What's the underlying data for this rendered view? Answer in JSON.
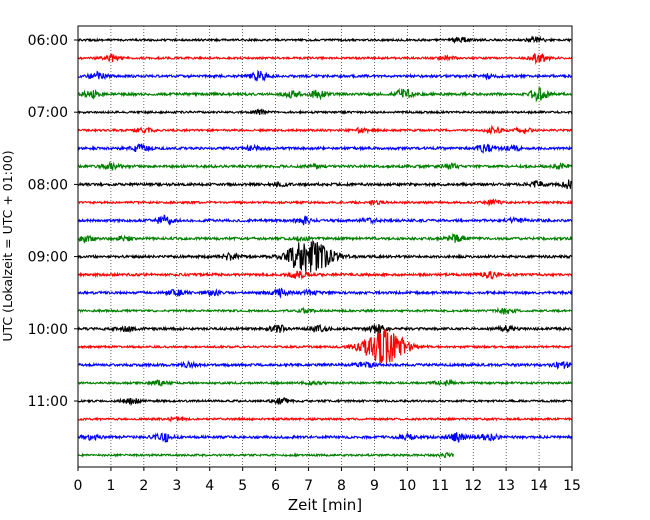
{
  "chart_data": {
    "type": "line",
    "title": "",
    "xlabel": "Zeit  [min]",
    "ylabel": "UTC (Lokalzeit = UTC + 01:00)",
    "xlim": [
      0,
      15
    ],
    "x_ticks": [
      "0",
      "1",
      "2",
      "3",
      "4",
      "5",
      "6",
      "7",
      "8",
      "9",
      "10",
      "11",
      "12",
      "13",
      "14",
      "15"
    ],
    "y_ticks": [
      "06:00",
      "07:00",
      "08:00",
      "09:00",
      "10:00",
      "11:00"
    ],
    "grid": "vertical dotted at each minute",
    "trace_interval_minutes": 15,
    "trace_colors": [
      "#000000",
      "#ff0000",
      "#0000ff",
      "#008000"
    ],
    "traces": [
      {
        "start": "06:00",
        "color": "#000000",
        "amplitude": 0.2,
        "bursts": [
          [
            11.6,
            0.5
          ],
          [
            13.9,
            0.5
          ]
        ]
      },
      {
        "start": "06:15",
        "color": "#ff0000",
        "amplitude": 0.2,
        "bursts": [
          [
            1.0,
            0.7
          ],
          [
            11.2,
            0.4
          ],
          [
            14.0,
            0.9
          ]
        ]
      },
      {
        "start": "06:30",
        "color": "#0000ff",
        "amplitude": 0.25,
        "bursts": [
          [
            0.6,
            0.7
          ],
          [
            5.5,
            0.9
          ],
          [
            12.5,
            0.4
          ]
        ]
      },
      {
        "start": "06:45",
        "color": "#008000",
        "amplitude": 0.25,
        "bursts": [
          [
            0.4,
            0.6
          ],
          [
            6.5,
            0.6
          ],
          [
            7.3,
            0.8
          ],
          [
            9.9,
            1.0
          ],
          [
            14.0,
            1.2
          ]
        ]
      },
      {
        "start": "07:00",
        "color": "#000000",
        "amplitude": 0.2,
        "bursts": [
          [
            5.5,
            0.4
          ]
        ]
      },
      {
        "start": "07:15",
        "color": "#ff0000",
        "amplitude": 0.2,
        "bursts": [
          [
            2.0,
            0.6
          ],
          [
            8.6,
            0.4
          ],
          [
            12.6,
            0.6
          ],
          [
            13.5,
            0.5
          ]
        ]
      },
      {
        "start": "07:30",
        "color": "#0000ff",
        "amplitude": 0.25,
        "bursts": [
          [
            1.9,
            0.7
          ],
          [
            5.3,
            0.4
          ],
          [
            12.4,
            0.7
          ],
          [
            13.2,
            0.4
          ]
        ]
      },
      {
        "start": "07:45",
        "color": "#008000",
        "amplitude": 0.25,
        "bursts": [
          [
            1.0,
            0.6
          ],
          [
            7.2,
            0.4
          ],
          [
            11.3,
            0.4
          ],
          [
            14.6,
            0.4
          ]
        ]
      },
      {
        "start": "08:00",
        "color": "#000000",
        "amplitude": 0.25,
        "bursts": [
          [
            6.1,
            0.3
          ],
          [
            13.9,
            0.6
          ],
          [
            15.0,
            1.0
          ]
        ]
      },
      {
        "start": "08:15",
        "color": "#ff0000",
        "amplitude": 0.2,
        "bursts": [
          [
            8.9,
            0.5
          ],
          [
            12.6,
            0.4
          ]
        ]
      },
      {
        "start": "08:30",
        "color": "#0000ff",
        "amplitude": 0.25,
        "bursts": [
          [
            2.6,
            0.9
          ],
          [
            6.9,
            0.7
          ],
          [
            8.8,
            0.4
          ],
          [
            13.3,
            0.4
          ]
        ]
      },
      {
        "start": "08:45",
        "color": "#008000",
        "amplitude": 0.25,
        "bursts": [
          [
            0.2,
            0.6
          ],
          [
            1.4,
            0.4
          ],
          [
            11.5,
            0.7
          ],
          [
            6.8,
            0.3
          ]
        ]
      },
      {
        "start": "09:00",
        "color": "#000000",
        "amplitude": 0.25,
        "bursts": [
          [
            4.6,
            0.7
          ],
          [
            6.6,
            0.9
          ],
          [
            7.1,
            3.0
          ]
        ]
      },
      {
        "start": "09:15",
        "color": "#ff0000",
        "amplitude": 0.25,
        "bursts": [
          [
            6.7,
            0.6
          ],
          [
            12.5,
            0.6
          ]
        ]
      },
      {
        "start": "09:30",
        "color": "#0000ff",
        "amplitude": 0.25,
        "bursts": [
          [
            3.0,
            0.6
          ],
          [
            4.1,
            0.4
          ],
          [
            6.1,
            0.7
          ],
          [
            7.0,
            0.4
          ]
        ]
      },
      {
        "start": "09:45",
        "color": "#008000",
        "amplitude": 0.2,
        "bursts": [
          [
            6.9,
            0.3
          ],
          [
            13.0,
            0.5
          ]
        ]
      },
      {
        "start": "10:00",
        "color": "#000000",
        "amplitude": 0.25,
        "bursts": [
          [
            1.5,
            0.4
          ],
          [
            6.1,
            0.6
          ],
          [
            7.3,
            0.6
          ],
          [
            9.1,
            0.8
          ],
          [
            13.0,
            0.4
          ]
        ]
      },
      {
        "start": "10:15",
        "color": "#ff0000",
        "amplitude": 0.2,
        "bursts": [
          [
            9.3,
            3.5
          ]
        ]
      },
      {
        "start": "10:30",
        "color": "#0000ff",
        "amplitude": 0.25,
        "bursts": [
          [
            3.4,
            0.4
          ],
          [
            8.7,
            0.5
          ],
          [
            14.7,
            0.6
          ]
        ]
      },
      {
        "start": "10:45",
        "color": "#008000",
        "amplitude": 0.2,
        "bursts": [
          [
            2.5,
            0.5
          ],
          [
            7.1,
            0.3
          ],
          [
            11.1,
            0.5
          ]
        ]
      },
      {
        "start": "11:00",
        "color": "#000000",
        "amplitude": 0.2,
        "bursts": [
          [
            1.6,
            0.6
          ],
          [
            6.2,
            0.5
          ]
        ]
      },
      {
        "start": "11:15",
        "color": "#ff0000",
        "amplitude": 0.2,
        "bursts": [
          [
            3.0,
            0.3
          ]
        ]
      },
      {
        "start": "11:30",
        "color": "#0000ff",
        "amplitude": 0.25,
        "bursts": [
          [
            0.4,
            0.4
          ],
          [
            2.6,
            0.9
          ],
          [
            10.0,
            0.5
          ],
          [
            11.5,
            0.8
          ],
          [
            12.5,
            0.6
          ]
        ]
      },
      {
        "start": "11:45",
        "color": "#008000",
        "amplitude": 0.2,
        "end": 11.4,
        "bursts": [
          [
            11.2,
            0.3
          ]
        ]
      }
    ]
  }
}
